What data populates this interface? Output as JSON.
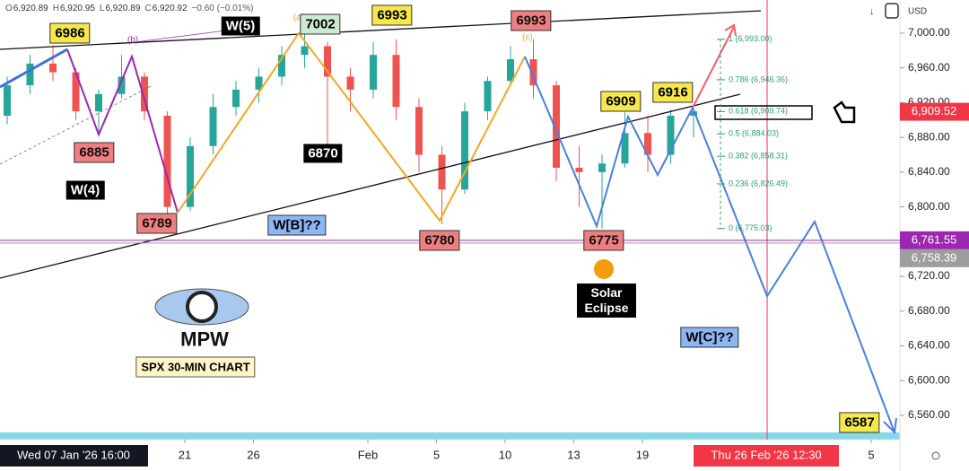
{
  "chart_data": {
    "type": "candlestick",
    "ohlc_header": [
      "O",
      "6,920.89",
      "H",
      "6,920.95",
      "L",
      "6,920.89",
      "C",
      "6,920.92",
      "−0.60 (−0.01%)"
    ],
    "currency": "USD",
    "categories": [
      null,
      null,
      null,
      null,
      null,
      null,
      null,
      null,
      "21",
      null,
      null,
      "26",
      null,
      null,
      null,
      null,
      "Feb",
      null,
      null,
      "5",
      null,
      null,
      "10",
      null,
      null,
      "13",
      null,
      null,
      "19",
      null,
      null,
      null,
      null,
      null,
      null,
      null,
      null,
      null,
      "5",
      null
    ],
    "cursor_labels": [
      "Wed 07 Jan '26   16:00",
      "Thu 26 Feb '26   12:30"
    ],
    "series": [
      {
        "name": "SPX",
        "up_color": "#26a69a",
        "down_color": "#ef5350",
        "open": [
          6905,
          6940,
          6965,
          6955,
          6910,
          6930,
          6950,
          6905,
          6800,
          6870,
          6915,
          6935,
          6950,
          6975,
          6985,
          6950,
          6935,
          6975,
          6915,
          6860,
          6820,
          6910,
          6945,
          6970,
          6940,
          6845,
          6840,
          6850,
          6885,
          6860,
          6905
        ],
        "high": [
          6950,
          6975,
          6986,
          6960,
          6935,
          6975,
          6955,
          6910,
          6880,
          6930,
          6945,
          6960,
          6985,
          7002,
          6990,
          6960,
          6990,
          6993,
          6925,
          6870,
          6920,
          6950,
          6985,
          6993,
          6945,
          6870,
          6860,
          6909,
          6905,
          6912,
          6916
        ],
        "low": [
          6895,
          6930,
          6945,
          6900,
          6885,
          6925,
          6900,
          6789,
          6795,
          6860,
          6905,
          6920,
          6940,
          6960,
          6870,
          6910,
          6925,
          6900,
          6840,
          6780,
          6815,
          6900,
          6940,
          6925,
          6830,
          6800,
          6775,
          6845,
          6840,
          6850,
          6880
        ],
        "close": [
          6940,
          6965,
          6955,
          6910,
          6930,
          6950,
          6910,
          6800,
          6870,
          6915,
          6935,
          6950,
          6975,
          6985,
          6950,
          6935,
          6975,
          6915,
          6860,
          6820,
          6910,
          6945,
          6970,
          6940,
          6845,
          6840,
          6850,
          6885,
          6860,
          6905,
          6910
        ]
      }
    ],
    "ylim": [
      6532.1,
      7038.2
    ],
    "yticks": [
      {
        "value": 7000,
        "label": "7,000.00"
      },
      {
        "value": 6960,
        "label": "6,960.00"
      },
      {
        "value": 6920,
        "label": "6,920.00"
      },
      {
        "value": 6880,
        "label": "6,880.00"
      },
      {
        "value": 6840,
        "label": "6,840.00"
      },
      {
        "value": 6800,
        "label": "6,800.00"
      },
      {
        "value": 6760,
        "label": "6,760.00"
      },
      {
        "value": 6720,
        "label": "6,720.00"
      },
      {
        "value": 6680,
        "label": "6,680.00"
      },
      {
        "value": 6640,
        "label": "6,640.00"
      },
      {
        "value": 6600,
        "label": "6,600.00"
      },
      {
        "value": 6560,
        "label": "6,560.00"
      }
    ],
    "price_labels": [
      {
        "value": 6909.52,
        "label": "6,909.52",
        "color": "#f23645"
      },
      {
        "value": 6761.55,
        "label": "6,761.55",
        "color": "#9c27b0"
      },
      {
        "value": 6758.39,
        "label": "6,758.39",
        "color": "#9e9e9e"
      }
    ],
    "fib_levels": [
      {
        "value": 6993,
        "label": "1 (6,993.00)"
      },
      {
        "value": 6946.36,
        "label": "0.786 (6,946.36)"
      },
      {
        "value": 6909.74,
        "label": "0.618 (6,909.74)"
      },
      {
        "value": 6884.03,
        "label": "0.5 (6,884.03)"
      },
      {
        "value": 6858.31,
        "label": "0.382 (6,858.31)"
      },
      {
        "value": 6826.49,
        "label": "0.236 (6,826.49)"
      },
      {
        "value": 6775.03,
        "label": "0 (6,775.03)"
      }
    ],
    "fib_color": "#2e9e6e",
    "annotations": [
      {
        "text": "6986",
        "style": "yellow"
      },
      {
        "text": "(b)",
        "style": "purple-text"
      },
      {
        "text": "W(5)",
        "style": "black"
      },
      {
        "text": "(a)",
        "style": "orange-text"
      },
      {
        "text": "7002",
        "style": "green"
      },
      {
        "text": "6993",
        "style": "yellow"
      },
      {
        "text": "6993",
        "style": "red"
      },
      {
        "text": "(c)",
        "style": "orange-text"
      },
      {
        "text": "6885",
        "style": "red"
      },
      {
        "text": "6870",
        "style": "black"
      },
      {
        "text": "W(4)",
        "style": "black"
      },
      {
        "text": "6789",
        "style": "red"
      },
      {
        "text": "W[B]??",
        "style": "blue"
      },
      {
        "text": "6780",
        "style": "red"
      },
      {
        "text": "6775",
        "style": "red"
      },
      {
        "text": "6909",
        "style": "yellow"
      },
      {
        "text": "6916",
        "style": "yellow"
      },
      {
        "text": "W[C]??",
        "style": "blue"
      },
      {
        "text": "6587",
        "style": "yellow"
      },
      {
        "text": "Solar Eclipse",
        "style": "eclipse"
      },
      {
        "text": "MPW",
        "style": "logo"
      },
      {
        "text": "SPX 30-MIN CHART",
        "style": "caption"
      }
    ]
  }
}
